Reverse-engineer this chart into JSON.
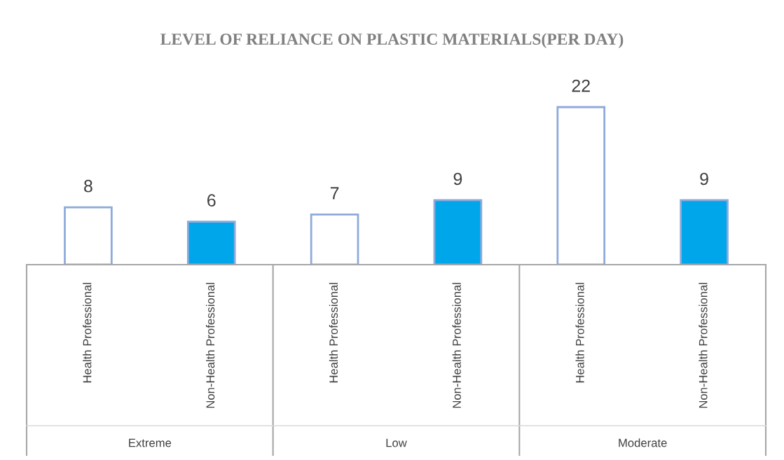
{
  "chart_data": {
    "type": "bar",
    "title": "LEVEL OF RELIANCE ON PLASTIC MATERIALS(PER DAY)",
    "categories": [
      "Health Professional",
      "Non-Health Professional",
      "Health Professional",
      "Non-Health Professional",
      "Health Professional",
      "Non-Health Professional"
    ],
    "values": [
      8,
      6,
      7,
      9,
      22,
      9
    ],
    "colors": [
      "#ffffff",
      "#00a6ea",
      "#ffffff",
      "#00a6ea",
      "#ffffff",
      "#00a6ea"
    ],
    "data_labels": true,
    "annotations": [
      "Extreme",
      "Low",
      "Moderate"
    ],
    "grid": false,
    "legend": false
  }
}
